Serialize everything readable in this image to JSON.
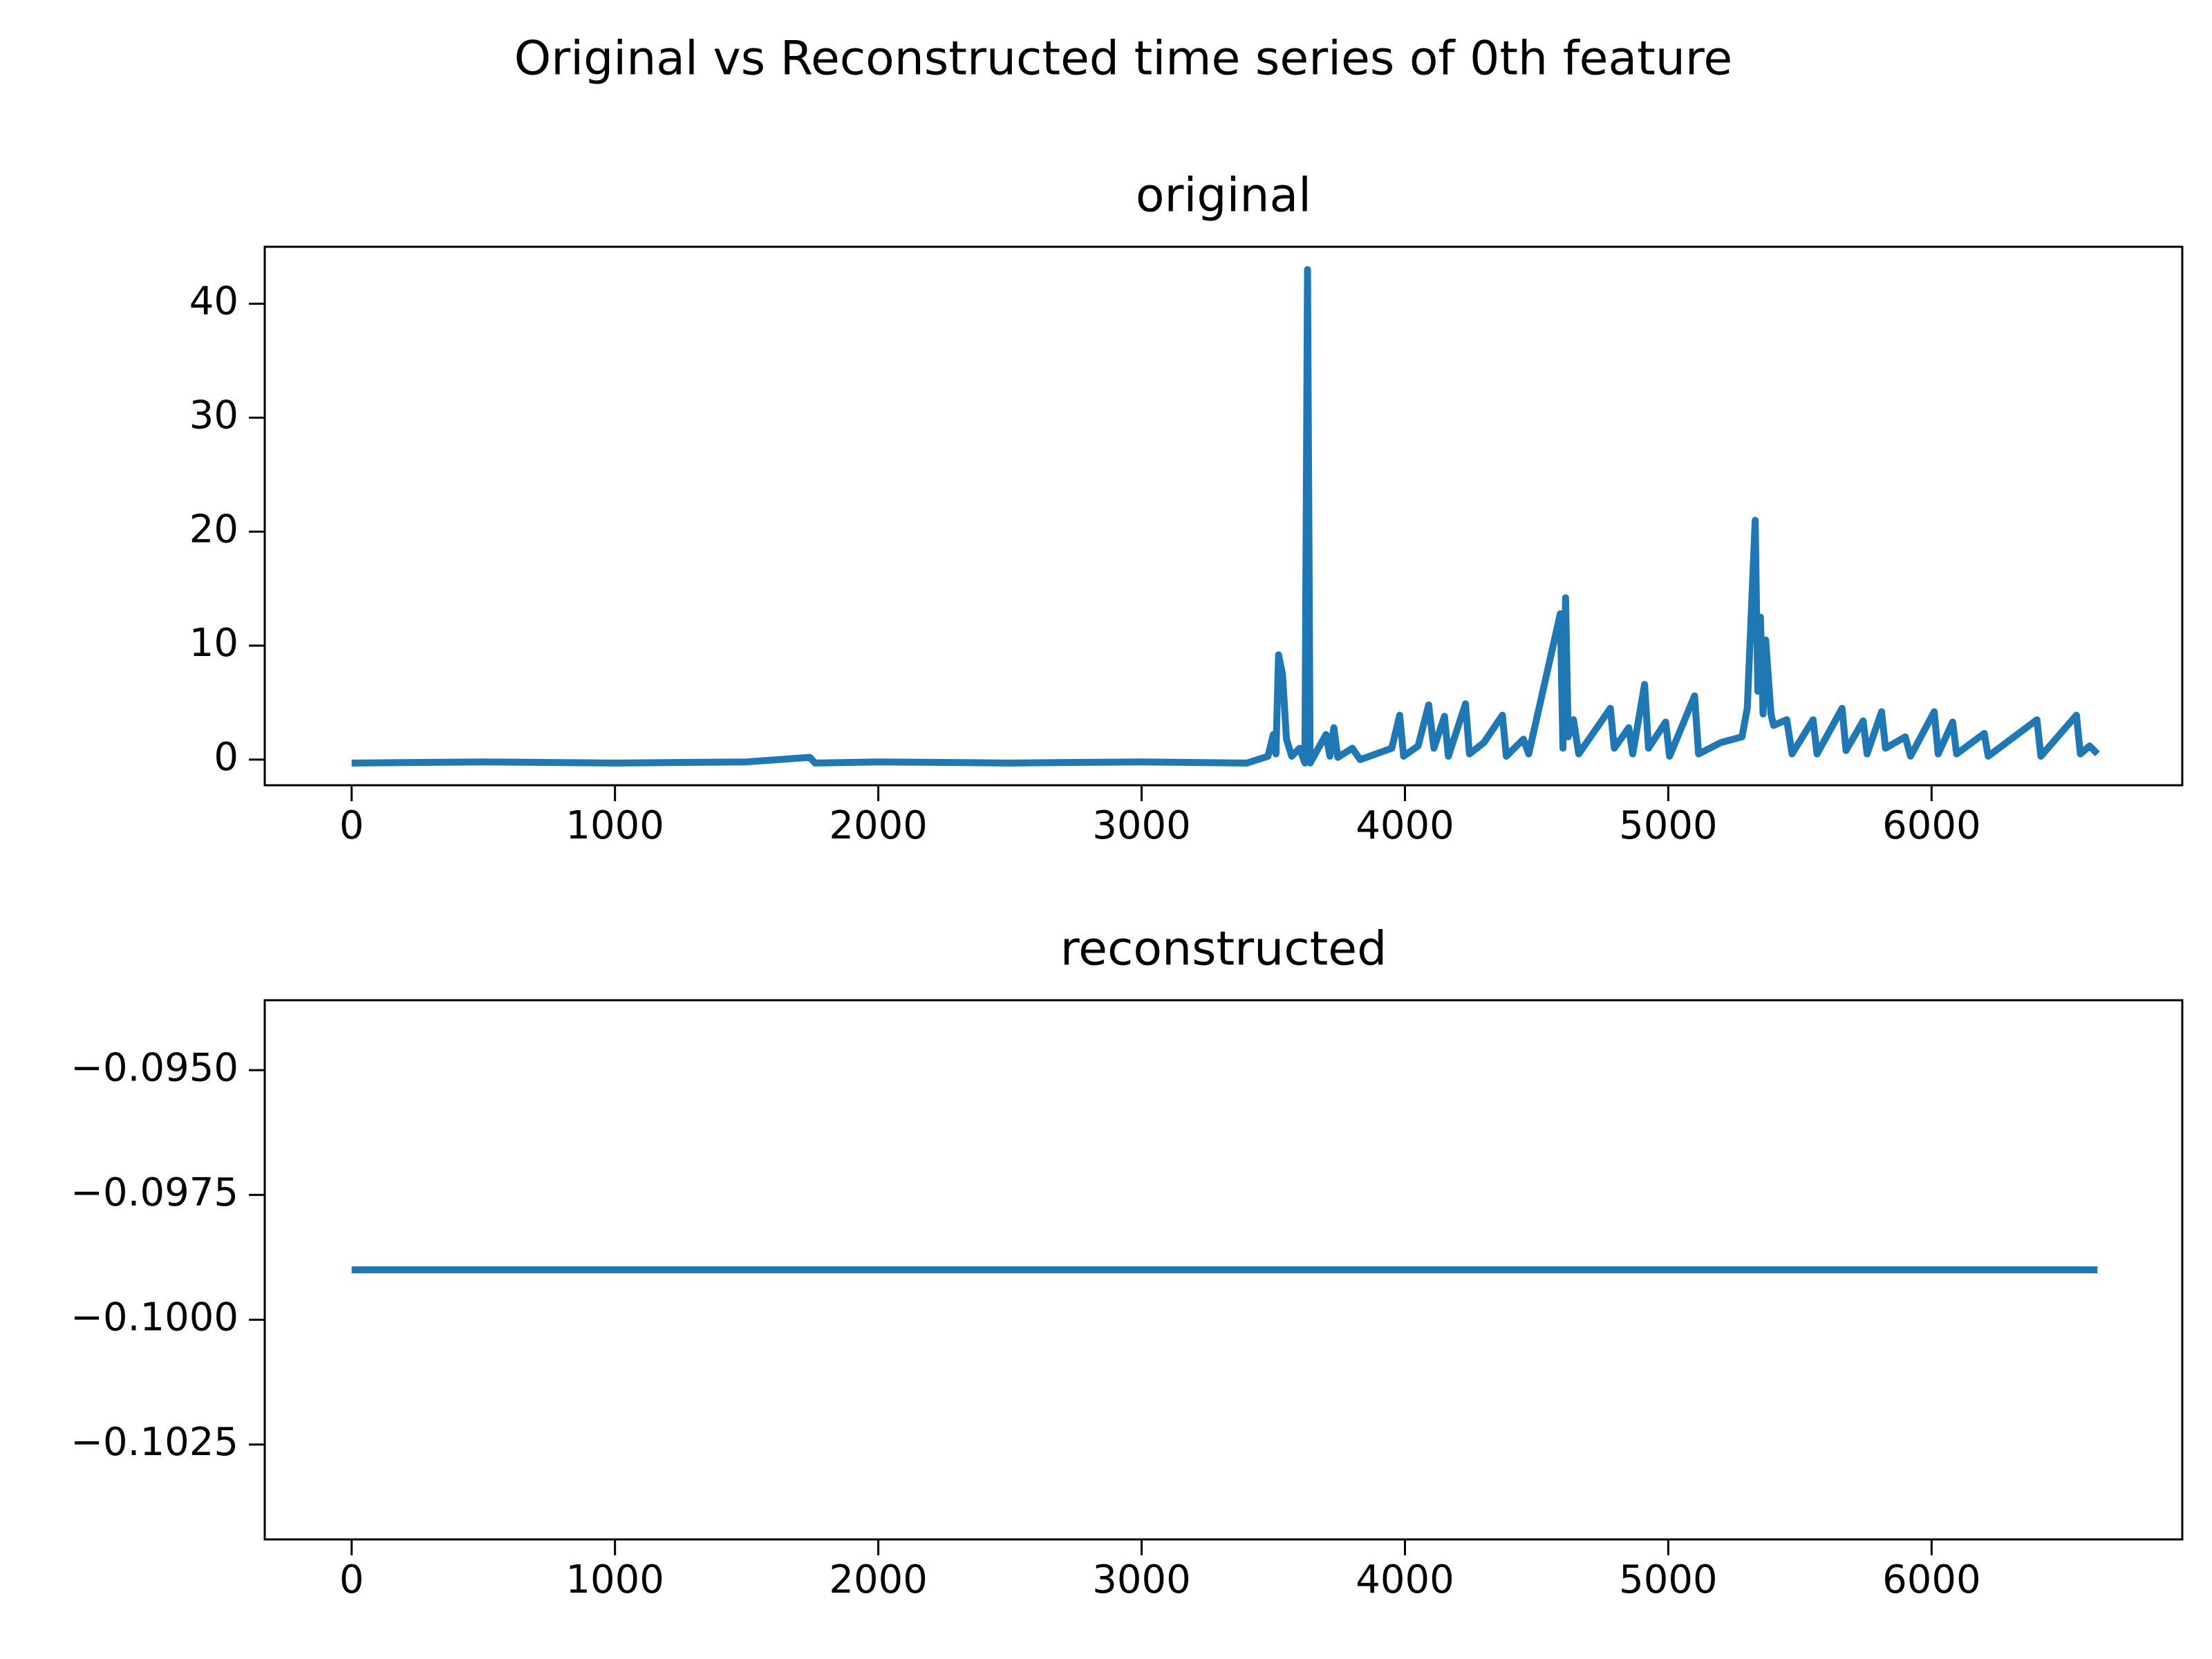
{
  "title": "Original vs Reconstructed time series of 0th feature",
  "chart_data": [
    {
      "type": "line",
      "title": "original",
      "color": "#1f77b4",
      "x": [
        0,
        500,
        1000,
        1500,
        1740,
        1760,
        2000,
        2500,
        3000,
        3400,
        3480,
        3500,
        3510,
        3520,
        3535,
        3550,
        3570,
        3600,
        3620,
        3630,
        3640,
        3700,
        3715,
        3730,
        3745,
        3800,
        3830,
        3950,
        3980,
        3995,
        4050,
        4090,
        4110,
        4150,
        4165,
        4230,
        4245,
        4300,
        4370,
        4385,
        4450,
        4470,
        4590,
        4600,
        4610,
        4620,
        4640,
        4660,
        4780,
        4795,
        4850,
        4865,
        4910,
        4925,
        4990,
        5005,
        5100,
        5115,
        5200,
        5280,
        5300,
        5330,
        5340,
        5350,
        5360,
        5370,
        5390,
        5400,
        5450,
        5470,
        5550,
        5565,
        5660,
        5675,
        5740,
        5755,
        5810,
        5825,
        5900,
        5920,
        6010,
        6025,
        6080,
        6095,
        6200,
        6215,
        6400,
        6415,
        6550,
        6565,
        6600,
        6630
      ],
      "values": [
        -0.3,
        -0.2,
        -0.3,
        -0.2,
        0.2,
        -0.3,
        -0.2,
        -0.3,
        -0.2,
        -0.3,
        0.3,
        2.2,
        0.5,
        9.2,
        7.5,
        1.8,
        0.3,
        1.0,
        -0.3,
        43,
        -0.3,
        2.2,
        0.3,
        2.8,
        0.2,
        1.0,
        0,
        1.0,
        3.9,
        0.3,
        1.2,
        4.8,
        1.0,
        3.8,
        0.3,
        4.9,
        0.5,
        1.5,
        3.9,
        0.3,
        1.8,
        0.5,
        12.8,
        1.0,
        14.2,
        2.0,
        3.5,
        0.5,
        4.5,
        1.0,
        2.8,
        0.5,
        6.6,
        1.0,
        3.3,
        0.3,
        5.6,
        0.5,
        1.5,
        2.0,
        4.5,
        21,
        6,
        12.5,
        4,
        10.5,
        4,
        3,
        3.5,
        0.5,
        3.5,
        0.5,
        4.5,
        0.8,
        3.4,
        0.5,
        4.2,
        1.0,
        2.0,
        0.3,
        4.2,
        0.5,
        3.3,
        0.5,
        2.3,
        0.3,
        3.5,
        0.3,
        3.9,
        0.5,
        1.2,
        0.5
      ],
      "xlim": [
        -330,
        6952
      ],
      "ylim": [
        -2.25,
        45
      ],
      "xticks": [
        0,
        1000,
        2000,
        3000,
        4000,
        5000,
        6000
      ],
      "yticks": [
        0,
        10,
        20,
        30,
        40
      ]
    },
    {
      "type": "line",
      "title": "reconstructed",
      "color": "#1f77b4",
      "x": [
        0,
        6630
      ],
      "values": [
        -0.099,
        -0.099
      ],
      "xlim": [
        -330,
        6952
      ],
      "ylim": [
        -0.1044,
        -0.0936
      ],
      "xticks": [
        0,
        1000,
        2000,
        3000,
        4000,
        5000,
        6000
      ],
      "yticks": [
        {
          "value": -0.095,
          "label": "−0.0950"
        },
        {
          "value": -0.0975,
          "label": "−0.0975"
        },
        {
          "value": -0.1,
          "label": "−0.1000"
        },
        {
          "value": -0.1025,
          "label": "−0.1025"
        }
      ]
    }
  ]
}
